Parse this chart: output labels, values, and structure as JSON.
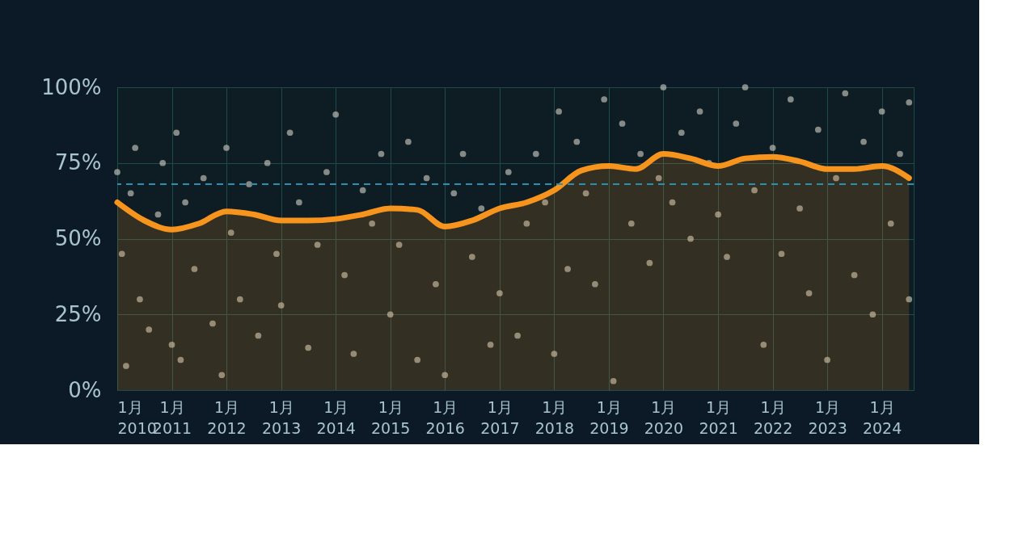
{
  "chart_data": {
    "type": "scatter",
    "xlim": [
      "2010-01",
      "2024-08"
    ],
    "xticks": [
      {
        "value": "2010-01",
        "label": "1月 2010"
      },
      {
        "value": "2011-01",
        "label": "1月 2011"
      },
      {
        "value": "2012-01",
        "label": "1月 2012"
      },
      {
        "value": "2013-01",
        "label": "1月 2013"
      },
      {
        "value": "2014-01",
        "label": "1月 2014"
      },
      {
        "value": "2015-01",
        "label": "1月 2015"
      },
      {
        "value": "2016-01",
        "label": "1月 2016"
      },
      {
        "value": "2017-01",
        "label": "1月 2017"
      },
      {
        "value": "2018-01",
        "label": "1月 2018"
      },
      {
        "value": "2019-01",
        "label": "1月 2019"
      },
      {
        "value": "2020-01",
        "label": "1月 2020"
      },
      {
        "value": "2021-01",
        "label": "1月 2021"
      },
      {
        "value": "2022-01",
        "label": "1月 2022"
      },
      {
        "value": "2023-01",
        "label": "1月 2023"
      },
      {
        "value": "2024-01",
        "label": "1月 2024"
      }
    ],
    "ylim": [
      0,
      100
    ],
    "yticks": [
      {
        "value": 0,
        "label": "0%"
      },
      {
        "value": 25,
        "label": "25%"
      },
      {
        "value": 50,
        "label": "50%"
      },
      {
        "value": 75,
        "label": "75%"
      },
      {
        "value": 100,
        "label": "100%"
      }
    ],
    "grid": true,
    "ref_lines": [
      {
        "axis": "y",
        "value": 68,
        "color": "#2a8fb0",
        "line_style": "dashed"
      }
    ],
    "series": [
      {
        "marker": "circle",
        "color": "#e8e4d8",
        "x": [
          "2010-01",
          "2010-02",
          "2010-03",
          "2010-04",
          "2010-05",
          "2010-06",
          "2010-08",
          "2010-10",
          "2010-11",
          "2011-01",
          "2011-02",
          "2011-03",
          "2011-04",
          "2011-06",
          "2011-08",
          "2011-10",
          "2011-12",
          "2012-01",
          "2012-02",
          "2012-04",
          "2012-06",
          "2012-08",
          "2012-10",
          "2012-12",
          "2013-01",
          "2013-03",
          "2013-05",
          "2013-07",
          "2013-09",
          "2013-11",
          "2014-01",
          "2014-03",
          "2014-05",
          "2014-07",
          "2014-09",
          "2014-11",
          "2015-01",
          "2015-03",
          "2015-05",
          "2015-07",
          "2015-09",
          "2015-11",
          "2016-01",
          "2016-03",
          "2016-05",
          "2016-07",
          "2016-09",
          "2016-11",
          "2017-01",
          "2017-03",
          "2017-05",
          "2017-07",
          "2017-09",
          "2017-11",
          "2018-01",
          "2018-02",
          "2018-04",
          "2018-06",
          "2018-08",
          "2018-10",
          "2018-12",
          "2019-02",
          "2019-04",
          "2019-06",
          "2019-08",
          "2019-10",
          "2019-12",
          "2020-01",
          "2020-03",
          "2020-05",
          "2020-07",
          "2020-09",
          "2020-11",
          "2021-01",
          "2021-03",
          "2021-05",
          "2021-07",
          "2021-09",
          "2021-11",
          "2022-01",
          "2022-03",
          "2022-05",
          "2022-07",
          "2022-09",
          "2022-11",
          "2023-01",
          "2023-03",
          "2023-05",
          "2023-07",
          "2023-09",
          "2023-11",
          "2024-01",
          "2024-03",
          "2024-05",
          "2024-07",
          "2024-07"
        ],
        "values": [
          72,
          45,
          8,
          65,
          80,
          30,
          20,
          58,
          75,
          15,
          85,
          10,
          62,
          40,
          70,
          22,
          5,
          80,
          52,
          30,
          68,
          18,
          75,
          45,
          28,
          85,
          62,
          14,
          48,
          72,
          91,
          38,
          12,
          66,
          55,
          78,
          25,
          48,
          82,
          10,
          70,
          35,
          5,
          65,
          78,
          44,
          60,
          15,
          32,
          72,
          18,
          55,
          78,
          62,
          12,
          92,
          40,
          82,
          65,
          35,
          96,
          3,
          88,
          55,
          78,
          42,
          70,
          100,
          62,
          85,
          50,
          92,
          75,
          58,
          44,
          88,
          100,
          66,
          15,
          80,
          45,
          96,
          60,
          32,
          86,
          10,
          70,
          98,
          38,
          82,
          25,
          92,
          55,
          78,
          30,
          95
        ]
      },
      {
        "type": "area",
        "marker": "none",
        "color": "#f7941d",
        "x": [
          "2010-01",
          "2010-07",
          "2011-01",
          "2011-07",
          "2012-01",
          "2012-07",
          "2013-01",
          "2013-07",
          "2014-01",
          "2014-07",
          "2015-01",
          "2015-07",
          "2016-01",
          "2016-07",
          "2017-01",
          "2017-07",
          "2018-01",
          "2018-07",
          "2019-01",
          "2019-07",
          "2020-01",
          "2020-07",
          "2021-01",
          "2021-07",
          "2022-01",
          "2022-07",
          "2023-01",
          "2023-07",
          "2024-01",
          "2024-07"
        ],
        "values": [
          62,
          56,
          53,
          55,
          59,
          58,
          56,
          56,
          56.5,
          58,
          60,
          59.5,
          54,
          56,
          60,
          62,
          66,
          72.5,
          74,
          73,
          78,
          76.5,
          74,
          76.5,
          77,
          75.5,
          73,
          73,
          74,
          70
        ]
      }
    ]
  }
}
